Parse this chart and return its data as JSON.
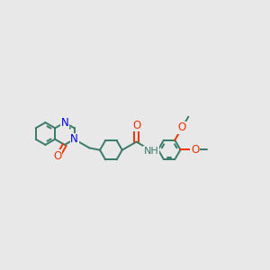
{
  "bg_color": "#e8e8e8",
  "bond_color": "#3a7a6a",
  "bond_width": 1.4,
  "n_color": "#0000ee",
  "o_color": "#ee3300",
  "font_size": 8.5,
  "fig_width": 3.0,
  "fig_height": 3.0,
  "xlim": [
    0,
    10
  ],
  "ylim": [
    1,
    9
  ]
}
